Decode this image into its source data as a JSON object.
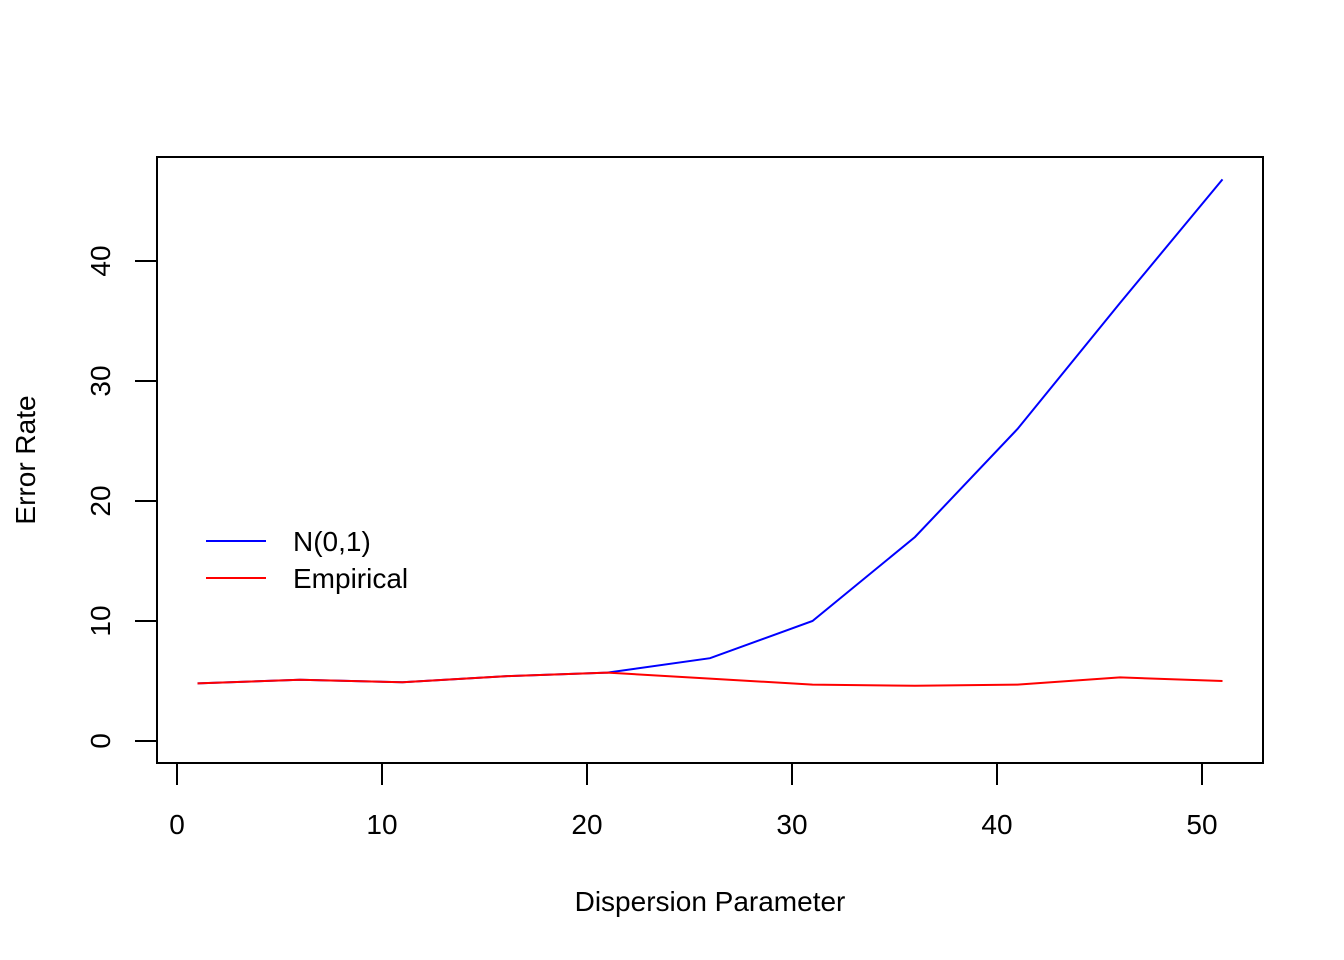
{
  "chart_data": {
    "type": "line",
    "title": "",
    "xlabel": "Dispersion Parameter",
    "ylabel": "Error Rate",
    "xlim": [
      0,
      52
    ],
    "ylim": [
      0,
      47
    ],
    "x_ticks": [
      "0",
      "10",
      "20",
      "30",
      "40",
      "50"
    ],
    "y_ticks": [
      "0",
      "10",
      "20",
      "30",
      "40"
    ],
    "grid": false,
    "legend_position": "left",
    "x": [
      1,
      6,
      11,
      16,
      21,
      26,
      31,
      36,
      41,
      46,
      51
    ],
    "series": [
      {
        "name": "N(0,1)",
        "color": "#0000ff",
        "values": [
          4.8,
          5.1,
          4.9,
          5.4,
          5.7,
          6.9,
          10.0,
          17.0,
          26.0,
          36.5,
          46.8
        ]
      },
      {
        "name": "Empirical",
        "color": "#ff0000",
        "values": [
          4.8,
          5.1,
          4.9,
          5.4,
          5.7,
          5.2,
          4.7,
          4.6,
          4.7,
          5.3,
          5.0
        ]
      }
    ]
  }
}
